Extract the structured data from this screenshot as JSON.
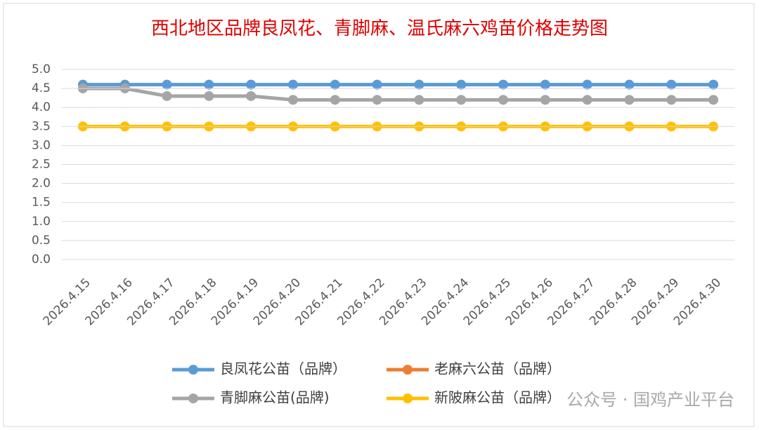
{
  "chart_data": {
    "type": "line",
    "title": "西北地区品牌良凤花、青脚麻、温氏麻六鸡苗价格走势图",
    "categories": [
      "2026.4.15",
      "2026.4.16",
      "2026.4.17",
      "2026.4.18",
      "2026.4.19",
      "2026.4.20",
      "2026.4.21",
      "2026.4.22",
      "2026.4.23",
      "2026.4.24",
      "2026.4.25",
      "2026.4.26",
      "2026.4.27",
      "2026.4.28",
      "2026.4.29",
      "2026.4.30"
    ],
    "series": [
      {
        "name": "良凤花公苗（品牌）",
        "color": "#5b9bd5",
        "values": [
          4.6,
          4.6,
          4.6,
          4.6,
          4.6,
          4.6,
          4.6,
          4.6,
          4.6,
          4.6,
          4.6,
          4.6,
          4.6,
          4.6,
          4.6,
          4.6
        ]
      },
      {
        "name": "老麻六公苗（品牌）",
        "color": "#ed7d31",
        "values": [
          null,
          null,
          null,
          null,
          null,
          null,
          null,
          null,
          null,
          null,
          null,
          null,
          null,
          null,
          null,
          null
        ]
      },
      {
        "name": "青脚麻公苗(品牌)",
        "color": "#a5a5a5",
        "values": [
          4.5,
          4.5,
          4.3,
          4.3,
          4.3,
          4.2,
          4.2,
          4.2,
          4.2,
          4.2,
          4.2,
          4.2,
          4.2,
          4.2,
          4.2,
          4.2
        ]
      },
      {
        "name": "新陂麻公苗（品牌）",
        "color": "#ffc000",
        "values": [
          3.5,
          3.5,
          3.5,
          3.5,
          3.5,
          3.5,
          3.5,
          3.5,
          3.5,
          3.5,
          3.5,
          3.5,
          3.5,
          3.5,
          3.5,
          3.5
        ]
      }
    ],
    "ylim": [
      0,
      5
    ],
    "yticks": [
      {
        "value": 0,
        "label": "0.0"
      },
      0.5,
      {
        "value": 1,
        "label": "1.0"
      },
      1.5,
      {
        "value": 2,
        "label": "2.0"
      },
      2.5,
      {
        "value": 3,
        "label": "3.0"
      },
      3.5,
      {
        "value": 4,
        "label": "4.0"
      },
      4.5,
      {
        "value": 5,
        "label": "5.0"
      }
    ],
    "grid": true,
    "legend": "bottom",
    "watermark": "公众号 · 国鸡产业平台"
  }
}
